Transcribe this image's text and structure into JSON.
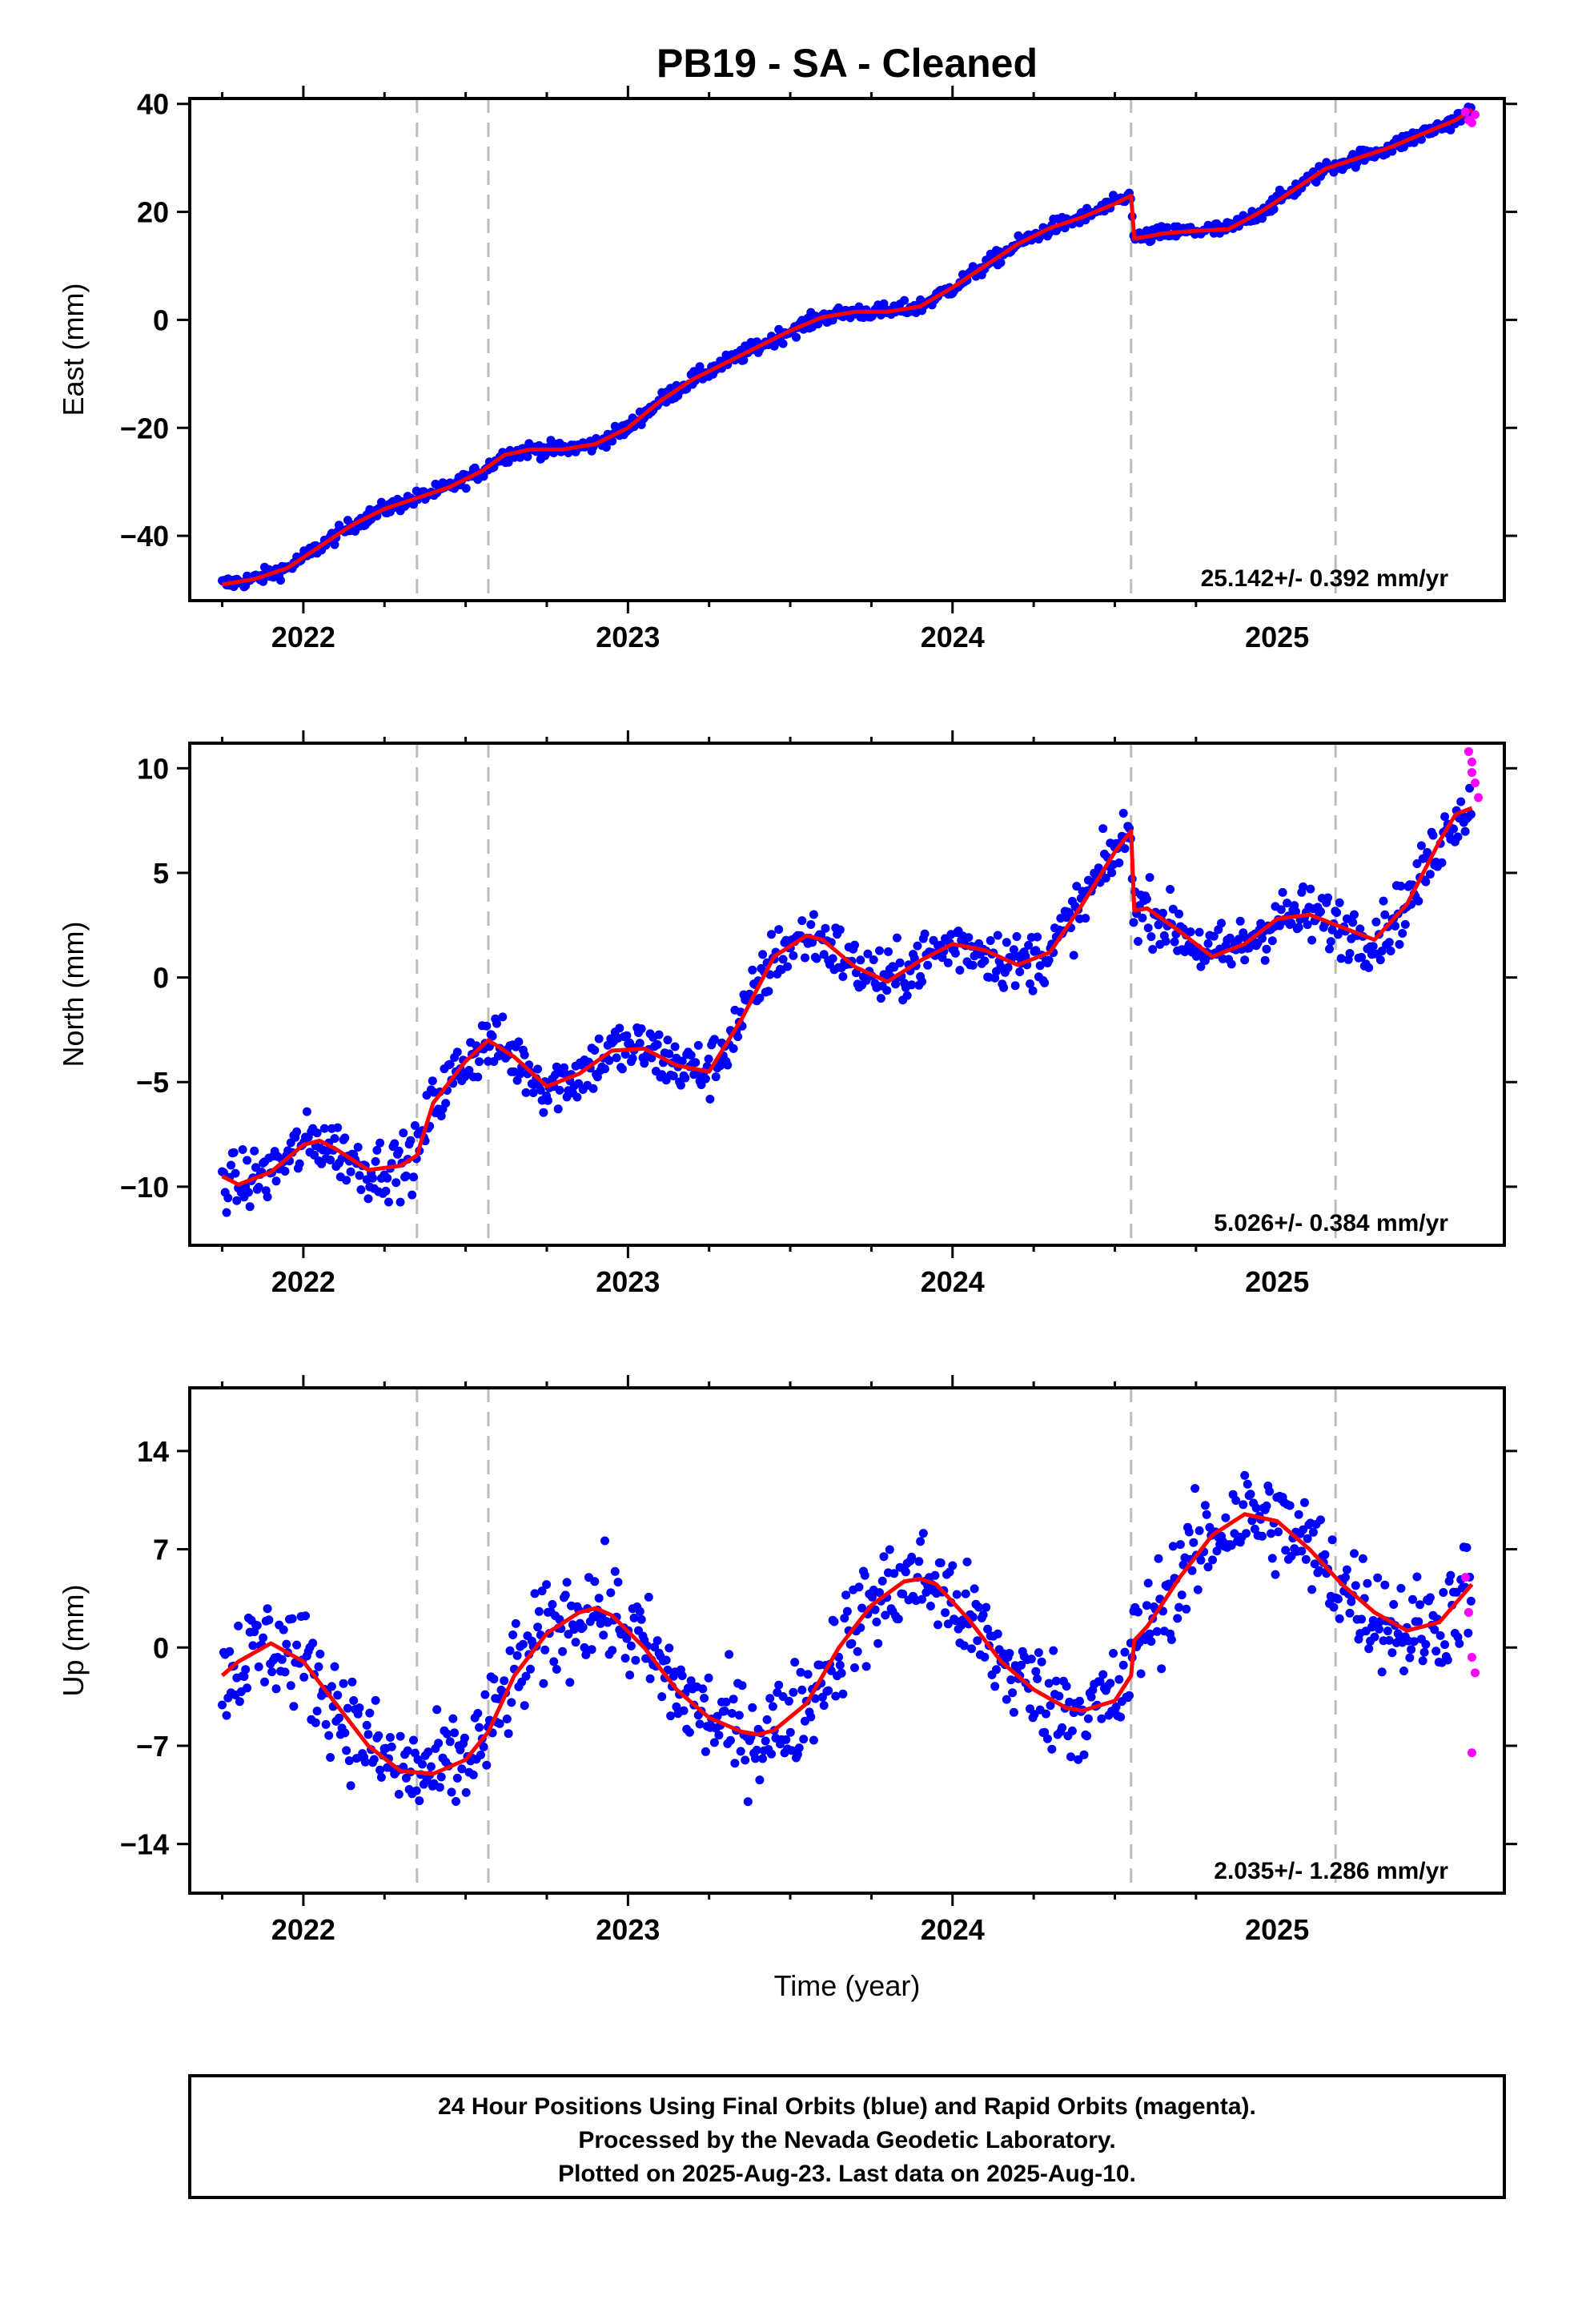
{
  "title": "PB19  - SA - Cleaned",
  "xlabel": "Time (year)",
  "footer_lines": [
    "24 Hour Positions Using Final Orbits (blue) and Rapid Orbits (magenta).",
    "Processed by the Nevada Geodetic Laboratory.",
    "Plotted on 2025-Aug-23. Last data on 2025-Aug-10."
  ],
  "colors": {
    "final": "#0000ff",
    "rapid": "#ff00ff",
    "model": "#ff0000",
    "breaks": "#bbbbbb"
  },
  "chart_data": [
    {
      "type": "scatter",
      "ylabel": "East (mm)",
      "rate_label": "25.142+/- 0.392 mm/yr",
      "xlim": [
        2021.65,
        2025.7
      ],
      "ylim": [
        -52,
        41
      ],
      "yticks": [
        -40,
        -20,
        0,
        20,
        40
      ],
      "yticklabels": [
        "−40",
        "−20",
        "0",
        "20",
        "40"
      ],
      "xticks": [
        2022,
        2023,
        2024,
        2025
      ],
      "xticklabels": [
        "2022",
        "2023",
        "2024",
        "2025"
      ],
      "break_epochs": [
        2022.35,
        2022.57,
        2024.55,
        2025.18
      ],
      "model": {
        "x": [
          2021.75,
          2021.85,
          2021.95,
          2022.05,
          2022.15,
          2022.25,
          2022.35,
          2022.45,
          2022.55,
          2022.62,
          2022.7,
          2022.8,
          2022.9,
          2023.0,
          2023.1,
          2023.2,
          2023.3,
          2023.4,
          2023.5,
          2023.6,
          2023.7,
          2023.8,
          2023.9,
          2024.0,
          2024.1,
          2024.2,
          2024.3,
          2024.4,
          2024.5,
          2024.55,
          2024.56,
          2024.65,
          2024.75,
          2024.85,
          2024.95,
          2025.05,
          2025.15,
          2025.25,
          2025.35,
          2025.45,
          2025.55,
          2025.6
        ],
        "y": [
          -49,
          -48,
          -46,
          -42,
          -38,
          -35,
          -33,
          -31,
          -28,
          -25,
          -24,
          -24,
          -23,
          -20,
          -15,
          -11,
          -8,
          -5,
          -2,
          0.5,
          1.5,
          1.5,
          2.5,
          6,
          10,
          14,
          17,
          19,
          21.5,
          23,
          15,
          16,
          16.5,
          16.8,
          20,
          24,
          28,
          30,
          32,
          34.5,
          37,
          39
        ]
      },
      "rapid": {
        "x": [
          2025.58,
          2025.59,
          2025.6,
          2025.61
        ],
        "y": [
          38.5,
          37,
          36.5,
          38
        ]
      }
    },
    {
      "type": "scatter",
      "ylabel": "North (mm)",
      "rate_label": "5.026+/- 0.384 mm/yr",
      "xlim": [
        2021.65,
        2025.7
      ],
      "ylim": [
        -12.8,
        11.2
      ],
      "yticks": [
        -10,
        -5,
        0,
        5,
        10
      ],
      "yticklabels": [
        "−10",
        "−5",
        "0",
        "5",
        "10"
      ],
      "xticks": [
        2022,
        2023,
        2024,
        2025
      ],
      "xticklabels": [
        "2022",
        "2023",
        "2024",
        "2025"
      ],
      "break_epochs": [
        2022.35,
        2022.57,
        2024.55,
        2025.18
      ],
      "model": {
        "x": [
          2021.75,
          2021.8,
          2021.9,
          2022.0,
          2022.05,
          2022.1,
          2022.2,
          2022.3,
          2022.35,
          2022.4,
          2022.5,
          2022.57,
          2022.65,
          2022.75,
          2022.85,
          2022.95,
          2023.05,
          2023.15,
          2023.25,
          2023.35,
          2023.45,
          2023.55,
          2023.6,
          2023.7,
          2023.8,
          2023.9,
          2024.0,
          2024.1,
          2024.2,
          2024.3,
          2024.4,
          2024.5,
          2024.55,
          2024.56,
          2024.6,
          2024.7,
          2024.8,
          2024.9,
          2025.0,
          2025.1,
          2025.2,
          2025.3,
          2025.4,
          2025.5,
          2025.55,
          2025.6
        ],
        "y": [
          -9.5,
          -9.9,
          -9.3,
          -8,
          -7.8,
          -8.2,
          -9.2,
          -9,
          -8.5,
          -6,
          -4,
          -3,
          -3.8,
          -5.2,
          -4.6,
          -3.5,
          -3.4,
          -4.2,
          -4.5,
          -2,
          1,
          2,
          1.8,
          0.5,
          -0.2,
          0.8,
          1.6,
          1.3,
          0.6,
          1.2,
          3.5,
          6,
          7,
          3.2,
          3.3,
          2.2,
          1,
          1.6,
          2.8,
          3,
          2.4,
          1.8,
          3.5,
          6.5,
          7.8,
          8.1
        ]
      },
      "rapid": {
        "x": [
          2025.59,
          2025.6,
          2025.6,
          2025.61,
          2025.62
        ],
        "y": [
          10.8,
          10.3,
          9.8,
          9.3,
          8.6
        ]
      }
    },
    {
      "type": "scatter",
      "ylabel": "Up (mm)",
      "rate_label": "2.035+/- 1.286 mm/yr",
      "xlim": [
        2021.65,
        2025.7
      ],
      "ylim": [
        -17.5,
        18.5
      ],
      "yticks": [
        -14,
        -7,
        0,
        7,
        14
      ],
      "yticklabels": [
        "−14",
        "−7",
        "0",
        "7",
        "14"
      ],
      "xticks": [
        2022,
        2023,
        2024,
        2025
      ],
      "xticklabels": [
        "2022",
        "2023",
        "2024",
        "2025"
      ],
      "break_epochs": [
        2022.35,
        2022.57,
        2024.55,
        2025.18
      ],
      "model": {
        "x": [
          2021.75,
          2021.8,
          2021.9,
          2022.0,
          2022.1,
          2022.2,
          2022.3,
          2022.4,
          2022.5,
          2022.57,
          2022.65,
          2022.75,
          2022.85,
          2022.9,
          2022.95,
          2023.05,
          2023.15,
          2023.25,
          2023.35,
          2023.4,
          2023.45,
          2023.55,
          2023.65,
          2023.75,
          2023.85,
          2023.9,
          2023.95,
          2024.05,
          2024.15,
          2024.25,
          2024.35,
          2024.4,
          2024.5,
          2024.55,
          2024.56,
          2024.6,
          2024.7,
          2024.8,
          2024.9,
          2025.0,
          2025.1,
          2025.2,
          2025.3,
          2025.4,
          2025.5,
          2025.6
        ],
        "y": [
          -2,
          -1,
          0.3,
          -1,
          -4,
          -7,
          -8.8,
          -9,
          -8,
          -6,
          -2,
          1,
          2.5,
          2.8,
          2.3,
          0,
          -3,
          -5,
          -6,
          -6.2,
          -5.9,
          -4,
          0,
          3,
          4.7,
          4.9,
          4.5,
          2,
          -1,
          -3,
          -4.3,
          -4.5,
          -3.8,
          -2,
          0.5,
          1.5,
          5,
          8,
          9.5,
          9,
          7,
          4.5,
          2.5,
          1.2,
          1.8,
          4.5
        ]
      },
      "rapid": {
        "x": [
          2025.58,
          2025.59,
          2025.6,
          2025.6,
          2025.61
        ],
        "y": [
          5,
          2.5,
          -0.7,
          -7.5,
          -1.8
        ]
      }
    }
  ]
}
